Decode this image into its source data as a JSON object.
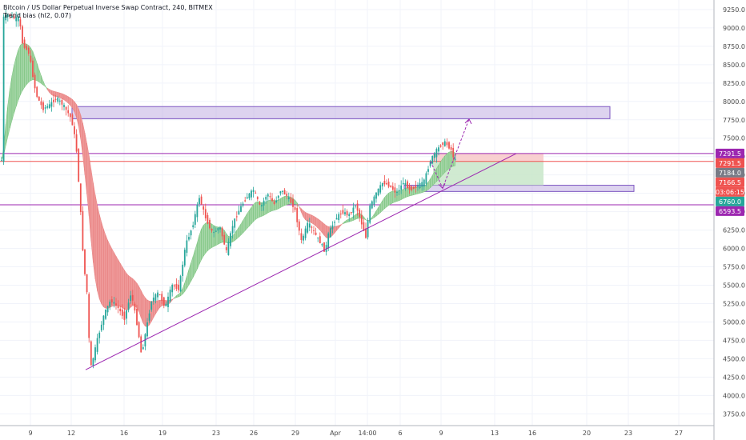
{
  "chart_data": {
    "type": "candlestick",
    "title": "Bitcoin / US Dollar Perpetual Inverse Swap Contract, 240, BITMEX",
    "indicator": "Trend bias (hl2, 0.07)",
    "y_axis": {
      "ticks": [
        9250,
        9000,
        8750,
        8500,
        8250,
        8000,
        7750,
        7500,
        7250,
        7000,
        6750,
        6500,
        6250,
        6000,
        5750,
        5500,
        5250,
        5000,
        4750,
        4500,
        4250,
        4000,
        3750
      ],
      "tick_labels": [
        "9250.0",
        "9000.0",
        "8750.0",
        "8500.0",
        "8250.0",
        "8000.0",
        "7750.0",
        "7500.0",
        "7250.0",
        "7000.0",
        "6750.0",
        "6500.0",
        "6250.0",
        "6000.0",
        "5750.0",
        "5500.0",
        "5250.0",
        "5000.0",
        "4750.0",
        "4500.0",
        "4250.0",
        "4000.0",
        "3750.0"
      ],
      "range": [
        3590,
        9380
      ],
      "position": "right"
    },
    "x_axis": {
      "labels": [
        "9",
        "12",
        "16",
        "19",
        "23",
        "26",
        "29",
        "Apr",
        "14:00",
        "6",
        "9",
        "13",
        "16",
        "20",
        "23",
        "27"
      ]
    },
    "price_badges": [
      {
        "label": "7291.5",
        "value": 7291.5,
        "color": "#9c27b0"
      },
      {
        "label": "7291.5",
        "value": 7230,
        "color": "#ef5350"
      },
      {
        "label": "7184.0",
        "value": 7184,
        "color": "#787b86"
      },
      {
        "label": "7166.5",
        "value": 7090,
        "color": "#ef5350"
      },
      {
        "label": "03:06:15",
        "value": 7010,
        "color": "#ef5350"
      },
      {
        "label": "6760.0",
        "value": 6940,
        "color": "#26a69a"
      },
      {
        "label": "6593.5",
        "value": 6810,
        "color": "#9c27b0"
      }
    ],
    "horizontal_lines": [
      {
        "value": 7291.5,
        "color": "#9c27b0"
      },
      {
        "value": 7184.0,
        "color": "#ef5350"
      },
      {
        "value": 6593.5,
        "color": "#9c27b0"
      }
    ],
    "zones": [
      {
        "name": "resistance-zone",
        "top": 7930,
        "bottom": 7765,
        "color": "#b39ddb"
      },
      {
        "name": "support-zone",
        "top": 6860,
        "bottom": 6775,
        "color": "#b39ddb"
      }
    ],
    "trade_setup": {
      "target": 7291.5,
      "entry": 7184,
      "stop": 6860,
      "profit_color": "#c8e6c9",
      "loss_color": "#f8c8c8"
    },
    "trendline": {
      "from": 4350,
      "to": 7291.5,
      "color": "#9c27b0"
    },
    "projection_arrows": {
      "low": 6820,
      "high": 7760,
      "color": "#9c27b0"
    },
    "candle_colors": {
      "up": "#26a69a",
      "down": "#ef5350"
    },
    "bias_ribbon_colors": {
      "bear": "#ef9a9a",
      "bull": "#a5d6a7"
    },
    "price_path": [
      [
        0,
        9130
      ],
      [
        0.01,
        9180
      ],
      [
        0.02,
        9120
      ],
      [
        0.025,
        9150
      ],
      [
        0.03,
        8800
      ],
      [
        0.04,
        8650
      ],
      [
        0.05,
        8100
      ],
      [
        0.06,
        7900
      ],
      [
        0.07,
        7950
      ],
      [
        0.08,
        8050
      ],
      [
        0.09,
        7950
      ],
      [
        0.1,
        7800
      ],
      [
        0.105,
        7650
      ],
      [
        0.11,
        7300
      ],
      [
        0.115,
        6600
      ],
      [
        0.12,
        5800
      ],
      [
        0.125,
        5400
      ],
      [
        0.13,
        4350
      ],
      [
        0.14,
        4750
      ],
      [
        0.15,
        5100
      ],
      [
        0.16,
        5300
      ],
      [
        0.17,
        5200
      ],
      [
        0.18,
        5050
      ],
      [
        0.19,
        5400
      ],
      [
        0.2,
        4900
      ],
      [
        0.205,
        4550
      ],
      [
        0.21,
        4800
      ],
      [
        0.22,
        5300
      ],
      [
        0.23,
        5400
      ],
      [
        0.24,
        5200
      ],
      [
        0.25,
        5500
      ],
      [
        0.26,
        5450
      ],
      [
        0.27,
        6050
      ],
      [
        0.28,
        6300
      ],
      [
        0.29,
        6700
      ],
      [
        0.3,
        6400
      ],
      [
        0.31,
        6200
      ],
      [
        0.32,
        6300
      ],
      [
        0.33,
        5950
      ],
      [
        0.34,
        6350
      ],
      [
        0.35,
        6550
      ],
      [
        0.36,
        6700
      ],
      [
        0.37,
        6800
      ],
      [
        0.38,
        6550
      ],
      [
        0.39,
        6750
      ],
      [
        0.4,
        6600
      ],
      [
        0.41,
        6800
      ],
      [
        0.42,
        6700
      ],
      [
        0.43,
        6550
      ],
      [
        0.44,
        6100
      ],
      [
        0.45,
        6350
      ],
      [
        0.46,
        6200
      ],
      [
        0.47,
        6050
      ],
      [
        0.475,
        5950
      ],
      [
        0.48,
        6200
      ],
      [
        0.49,
        6400
      ],
      [
        0.5,
        6500
      ],
      [
        0.51,
        6450
      ],
      [
        0.52,
        6600
      ],
      [
        0.53,
        6300
      ],
      [
        0.535,
        6150
      ],
      [
        0.54,
        6550
      ],
      [
        0.55,
        6750
      ],
      [
        0.56,
        6900
      ],
      [
        0.57,
        6850
      ],
      [
        0.58,
        6750
      ],
      [
        0.59,
        6900
      ],
      [
        0.6,
        6800
      ],
      [
        0.61,
        6850
      ],
      [
        0.62,
        6900
      ],
      [
        0.63,
        7200
      ],
      [
        0.64,
        7350
      ],
      [
        0.65,
        7450
      ],
      [
        0.66,
        7350
      ],
      [
        0.665,
        7200
      ]
    ]
  }
}
